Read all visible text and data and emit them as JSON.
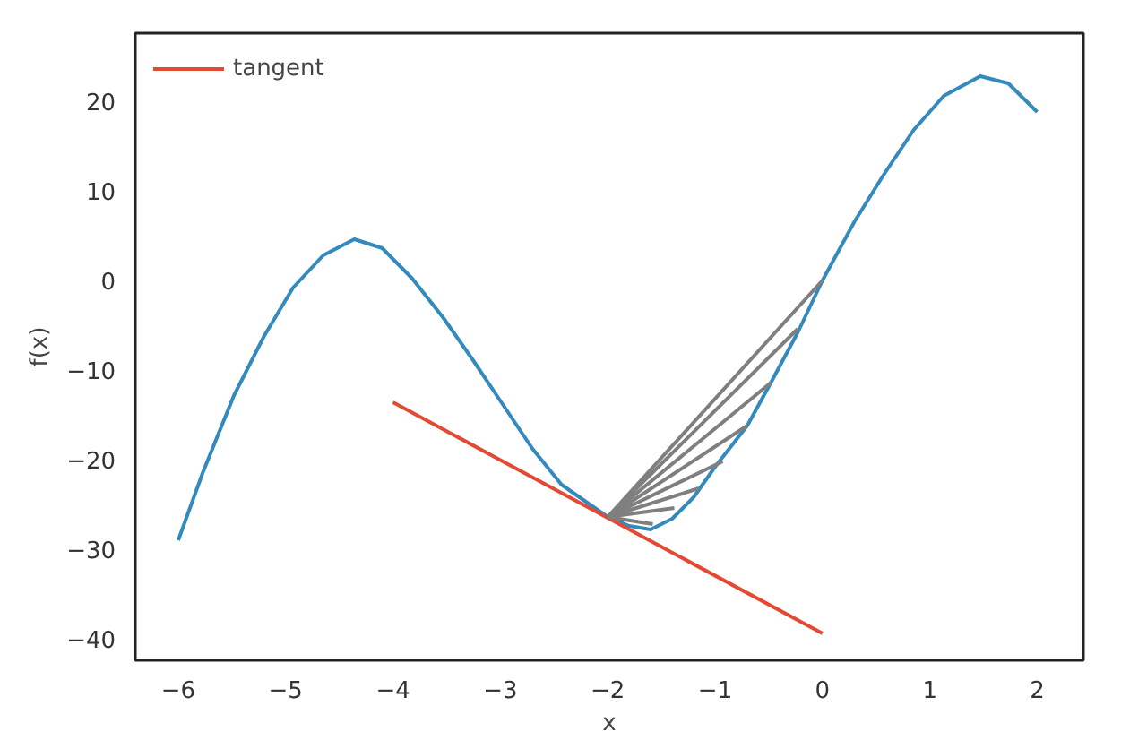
{
  "chart_data": {
    "type": "line",
    "xlabel": "x",
    "ylabel": "f(x)",
    "xlim": [
      -6.4,
      2.43
    ],
    "ylim": [
      -42.4,
      27.6
    ],
    "xticks": [
      -6,
      -5,
      -4,
      -3,
      -2,
      -1,
      0,
      1,
      2
    ],
    "yticks": [
      -40,
      -30,
      -20,
      -10,
      0,
      10,
      20
    ],
    "grid": false,
    "legend": "top left",
    "marker": "none",
    "line_style": "solid",
    "series": [
      {
        "color": "#348abd",
        "x": [
          -6,
          -5.77,
          -5.48,
          -5.2,
          -4.93,
          -4.65,
          -4.36,
          -4.1,
          -3.82,
          -3.53,
          -3.26,
          -2.98,
          -2.7,
          -2.43,
          -2,
          -1.8,
          -1.6,
          -1.4,
          -1.2,
          -1,
          -0.7,
          -0.48,
          -0.23,
          0,
          0.3,
          0.57,
          0.85,
          1.13,
          1.47,
          1.73,
          2
        ],
        "values": [
          -29,
          -21.4,
          -12.8,
          -6.2,
          -0.8,
          2.8,
          4.6,
          3.6,
          0.2,
          -4.2,
          -8.8,
          -13.8,
          -18.8,
          -22.8,
          -26.4,
          -27.4,
          -27.8,
          -26.6,
          -24.2,
          -20.8,
          -16.2,
          -11.4,
          -5.8,
          0,
          6.6,
          11.8,
          16.8,
          20.6,
          22.8,
          22,
          18.8
        ]
      },
      {
        "name": "tangent",
        "color": "#e24a33",
        "x": [
          -4,
          0
        ],
        "values": [
          -13.6,
          -39.4
        ]
      },
      {
        "color": "#7f7f7f",
        "x": [
          -2,
          0
        ],
        "values": [
          -26.4,
          0
        ]
      },
      {
        "color": "#7f7f7f",
        "x": [
          -2,
          -0.23
        ],
        "values": [
          -26.4,
          -5.4
        ]
      },
      {
        "color": "#7f7f7f",
        "x": [
          -2,
          -0.48
        ],
        "values": [
          -26.4,
          -11.4
        ]
      },
      {
        "color": "#7f7f7f",
        "x": [
          -2,
          -0.7
        ],
        "values": [
          -26.4,
          -16.2
        ]
      },
      {
        "color": "#7f7f7f",
        "x": [
          -2,
          -0.93
        ],
        "values": [
          -26.4,
          -20.2
        ]
      },
      {
        "color": "#7f7f7f",
        "x": [
          -2,
          -1.15
        ],
        "values": [
          -26.4,
          -23.2
        ]
      },
      {
        "color": "#7f7f7f",
        "x": [
          -2,
          -1.38
        ],
        "values": [
          -26.4,
          -25.4
        ]
      },
      {
        "color": "#7f7f7f",
        "x": [
          -2,
          -1.58
        ],
        "values": [
          -26.4,
          -27.2
        ]
      }
    ]
  }
}
